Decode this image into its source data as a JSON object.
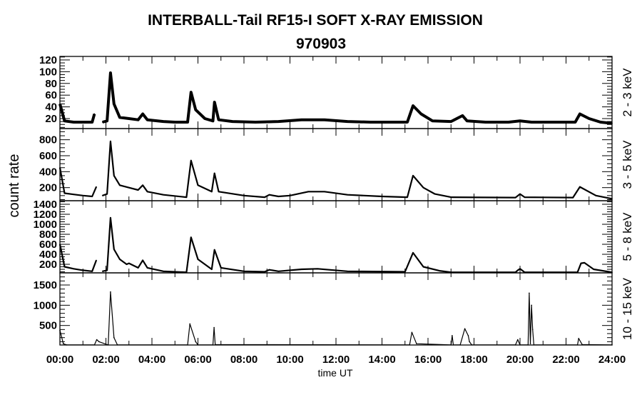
{
  "chart_data": {
    "type": "line",
    "title": "INTERBALL-Tail RF15-I SOFT X-RAY EMISSION",
    "subtitle": "970903",
    "xlabel": "time UT",
    "ylabel": "count rate",
    "xlim": [
      0,
      24
    ],
    "xticks": [
      "00:00",
      "02:00",
      "04:00",
      "06:00",
      "08:00",
      "10:00",
      "12:00",
      "14:00",
      "16:00",
      "18:00",
      "20:00",
      "22:00",
      "24:00"
    ],
    "grid": false,
    "panels": [
      {
        "label": "2 - 3 keV",
        "ylim": [
          3,
          126
        ],
        "yticks": [
          20,
          40,
          60,
          80,
          100,
          120
        ],
        "minor_step": 5,
        "x": [
          0,
          0.2,
          0.6,
          1.0,
          1.4,
          1.5,
          1.55,
          1.85,
          2.05,
          2.2,
          2.35,
          2.6,
          3.0,
          3.4,
          3.6,
          3.8,
          4.5,
          5.0,
          5.55,
          5.7,
          5.9,
          6.3,
          6.65,
          6.72,
          6.9,
          7.5,
          8.5,
          9.5,
          10.5,
          11.5,
          12.5,
          13.5,
          15.1,
          15.35,
          15.7,
          16.2,
          17.0,
          17.5,
          17.7,
          18.5,
          19.5,
          20.0,
          20.5,
          21.5,
          22.4,
          22.6,
          23.0,
          23.5,
          24
        ],
        "y": [
          45,
          16,
          14,
          14,
          14,
          28,
          null,
          14,
          16,
          98,
          45,
          22,
          20,
          18,
          28,
          18,
          15,
          14,
          14,
          65,
          35,
          20,
          16,
          48,
          18,
          15,
          14,
          15,
          18,
          18,
          15,
          14,
          14,
          42,
          28,
          16,
          15,
          25,
          16,
          14,
          14,
          16,
          14,
          14,
          14,
          28,
          20,
          14,
          12
        ]
      },
      {
        "label": "3 - 5 keV",
        "ylim": [
          36,
          940
        ],
        "yticks": [
          200,
          400,
          600,
          800
        ],
        "minor_step": 50,
        "x": [
          0,
          0.2,
          0.6,
          1.0,
          1.4,
          1.58,
          1.6,
          1.85,
          2.05,
          2.2,
          2.35,
          2.6,
          3.0,
          3.4,
          3.6,
          3.8,
          4.5,
          5.5,
          5.7,
          6.0,
          6.6,
          6.72,
          6.9,
          8.0,
          8.9,
          9.1,
          9.5,
          10.0,
          10.8,
          11.5,
          12.5,
          14.0,
          15.1,
          15.35,
          15.8,
          16.3,
          17.0,
          19.8,
          20.0,
          20.2,
          22.3,
          22.6,
          23.3,
          24
        ],
        "y": [
          450,
          130,
          115,
          100,
          90,
          210,
          null,
          100,
          120,
          780,
          350,
          230,
          200,
          170,
          230,
          150,
          110,
          80,
          540,
          230,
          150,
          380,
          150,
          100,
          80,
          110,
          90,
          100,
          150,
          150,
          110,
          90,
          80,
          350,
          200,
          120,
          80,
          75,
          120,
          80,
          75,
          210,
          100,
          60
        ]
      },
      {
        "label": "5 - 8 keV",
        "ylim": [
          29,
          1471
        ],
        "yticks": [
          200,
          400,
          600,
          800,
          1000,
          1200,
          1400
        ],
        "minor_step": 50,
        "x": [
          0,
          0.2,
          0.6,
          1.0,
          1.4,
          1.58,
          1.6,
          1.85,
          2.05,
          2.2,
          2.35,
          2.6,
          2.9,
          3.0,
          3.4,
          3.6,
          3.8,
          4.5,
          5.5,
          5.7,
          6.0,
          6.6,
          6.72,
          7.0,
          8.0,
          8.9,
          9.1,
          9.5,
          10.5,
          11.2,
          12.5,
          15.0,
          15.35,
          15.8,
          16.5,
          17.0,
          19.8,
          19.9,
          20.0,
          20.2,
          22.5,
          22.65,
          22.8,
          23.2,
          24
        ],
        "y": [
          600,
          150,
          110,
          80,
          60,
          280,
          null,
          60,
          80,
          1130,
          500,
          300,
          200,
          220,
          130,
          280,
          130,
          60,
          40,
          740,
          300,
          100,
          490,
          130,
          60,
          50,
          90,
          60,
          100,
          110,
          60,
          50,
          430,
          150,
          70,
          40,
          40,
          80,
          110,
          40,
          40,
          220,
          230,
          100,
          40
        ]
      },
      {
        "label": "10 - 15 keV",
        "ylim": [
          18,
          1800
        ],
        "yticks": [
          500,
          1000,
          1500
        ],
        "minor_step": 100,
        "x": [
          0,
          0.15,
          0.3,
          1.5,
          1.6,
          1.7,
          2.1,
          2.2,
          2.35,
          2.5,
          5.55,
          5.65,
          5.9,
          6.0,
          6.65,
          6.7,
          6.75,
          15.2,
          15.3,
          15.5,
          17.0,
          17.05,
          17.1,
          17.4,
          17.6,
          17.75,
          17.8,
          17.9,
          19.8,
          19.9,
          20.0,
          20.35,
          20.4,
          20.45,
          20.5,
          20.55,
          20.6,
          22.5,
          22.55,
          22.7,
          24
        ],
        "y": [
          380,
          50,
          20,
          20,
          150,
          100,
          20,
          1330,
          200,
          20,
          20,
          540,
          100,
          20,
          20,
          450,
          30,
          20,
          330,
          50,
          20,
          250,
          20,
          20,
          420,
          250,
          100,
          20,
          20,
          150,
          20,
          20,
          1300,
          50,
          1000,
          400,
          20,
          20,
          180,
          30,
          20
        ]
      }
    ]
  }
}
